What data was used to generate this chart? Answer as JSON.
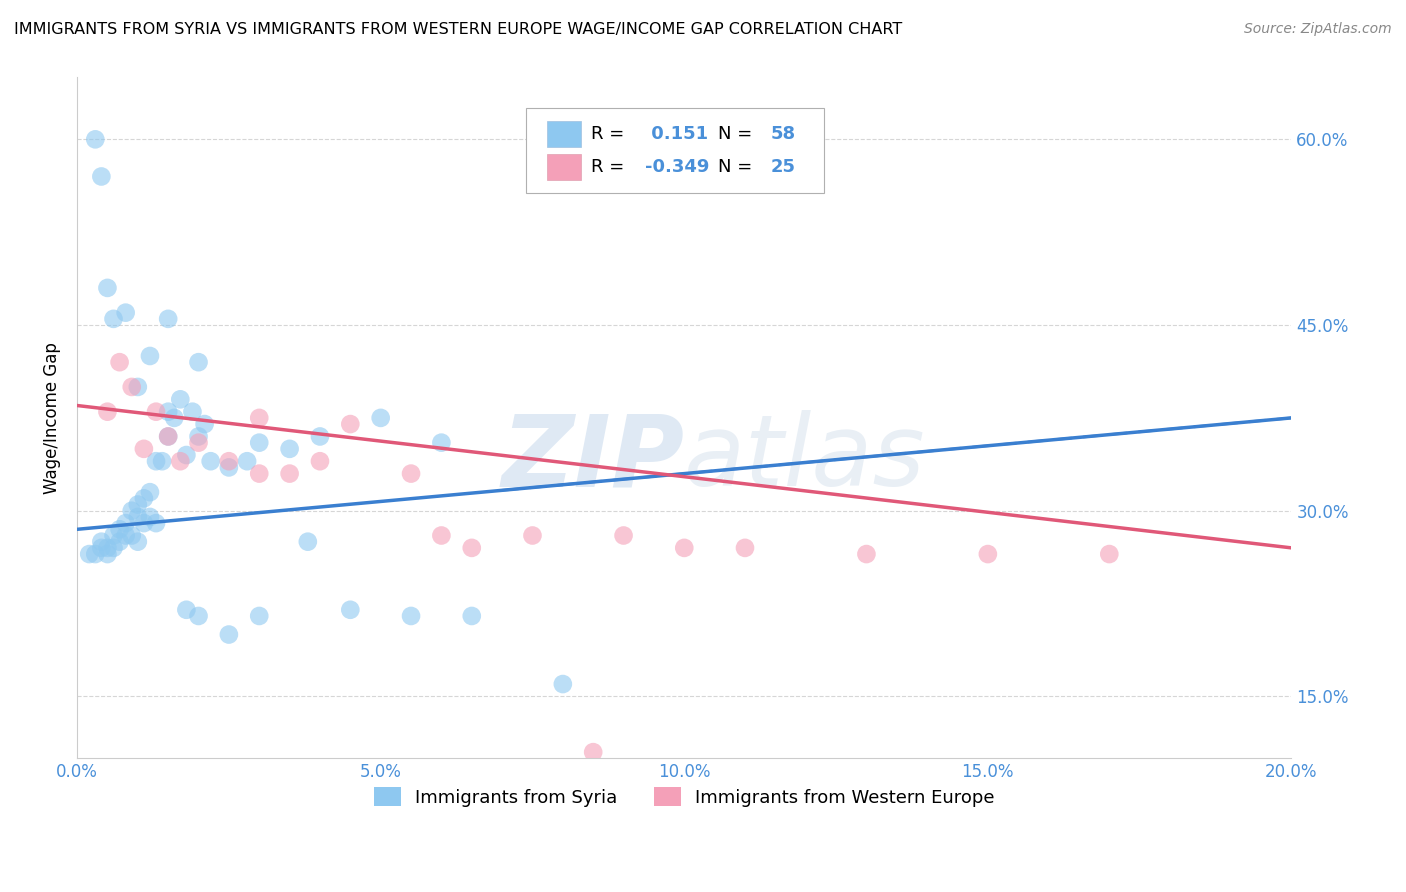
{
  "title": "IMMIGRANTS FROM SYRIA VS IMMIGRANTS FROM WESTERN EUROPE WAGE/INCOME GAP CORRELATION CHART",
  "source": "Source: ZipAtlas.com",
  "ylabel": "Wage/Income Gap",
  "watermark": "ZIPatlas",
  "legend_syria": "Immigrants from Syria",
  "legend_western": "Immigrants from Western Europe",
  "R_syria": 0.151,
  "N_syria": 58,
  "R_western": -0.349,
  "N_western": 25,
  "xlim": [
    0.0,
    0.2
  ],
  "ylim": [
    0.1,
    0.65
  ],
  "xticks": [
    0.0,
    0.05,
    0.1,
    0.15,
    0.2
  ],
  "yticks": [
    0.15,
    0.3,
    0.45,
    0.6
  ],
  "ytick_labels": [
    "15.0%",
    "30.0%",
    "45.0%",
    "60.0%"
  ],
  "xtick_labels": [
    "0.0%",
    "5.0%",
    "10.0%",
    "15.0%",
    "20.0%"
  ],
  "color_syria": "#8EC8F0",
  "color_western": "#F4A0B8",
  "color_line_syria": "#3A7FD0",
  "color_line_western": "#E05878",
  "color_text_blue": "#4A90D9",
  "background": "#FFFFFF",
  "syria_x": [
    0.002,
    0.003,
    0.004,
    0.004,
    0.005,
    0.005,
    0.006,
    0.006,
    0.007,
    0.007,
    0.008,
    0.008,
    0.009,
    0.009,
    0.01,
    0.01,
    0.01,
    0.011,
    0.011,
    0.012,
    0.012,
    0.013,
    0.013,
    0.014,
    0.015,
    0.015,
    0.016,
    0.017,
    0.018,
    0.019,
    0.02,
    0.021,
    0.022,
    0.025,
    0.028,
    0.03,
    0.035,
    0.04,
    0.05,
    0.06,
    0.003,
    0.004,
    0.005,
    0.006,
    0.008,
    0.01,
    0.012,
    0.015,
    0.018,
    0.02,
    0.025,
    0.03,
    0.038,
    0.045,
    0.055,
    0.065,
    0.08,
    0.02
  ],
  "syria_y": [
    0.265,
    0.265,
    0.27,
    0.275,
    0.265,
    0.27,
    0.27,
    0.28,
    0.275,
    0.285,
    0.28,
    0.29,
    0.28,
    0.3,
    0.275,
    0.295,
    0.305,
    0.29,
    0.31,
    0.295,
    0.315,
    0.29,
    0.34,
    0.34,
    0.36,
    0.38,
    0.375,
    0.39,
    0.345,
    0.38,
    0.36,
    0.37,
    0.34,
    0.335,
    0.34,
    0.355,
    0.35,
    0.36,
    0.375,
    0.355,
    0.6,
    0.57,
    0.48,
    0.455,
    0.46,
    0.4,
    0.425,
    0.455,
    0.22,
    0.215,
    0.2,
    0.215,
    0.275,
    0.22,
    0.215,
    0.215,
    0.16,
    0.42
  ],
  "western_x": [
    0.005,
    0.007,
    0.009,
    0.011,
    0.013,
    0.015,
    0.017,
    0.02,
    0.025,
    0.03,
    0.035,
    0.04,
    0.045,
    0.055,
    0.065,
    0.075,
    0.09,
    0.1,
    0.11,
    0.13,
    0.15,
    0.17,
    0.03,
    0.06,
    0.085
  ],
  "western_y": [
    0.38,
    0.42,
    0.4,
    0.35,
    0.38,
    0.36,
    0.34,
    0.355,
    0.34,
    0.375,
    0.33,
    0.34,
    0.37,
    0.33,
    0.27,
    0.28,
    0.28,
    0.27,
    0.27,
    0.265,
    0.265,
    0.265,
    0.33,
    0.28,
    0.105
  ],
  "trend_syria_x0": 0.0,
  "trend_syria_y0": 0.285,
  "trend_syria_x1": 0.2,
  "trend_syria_y1": 0.375,
  "trend_western_x0": 0.0,
  "trend_western_y0": 0.385,
  "trend_western_x1": 0.2,
  "trend_western_y1": 0.27
}
